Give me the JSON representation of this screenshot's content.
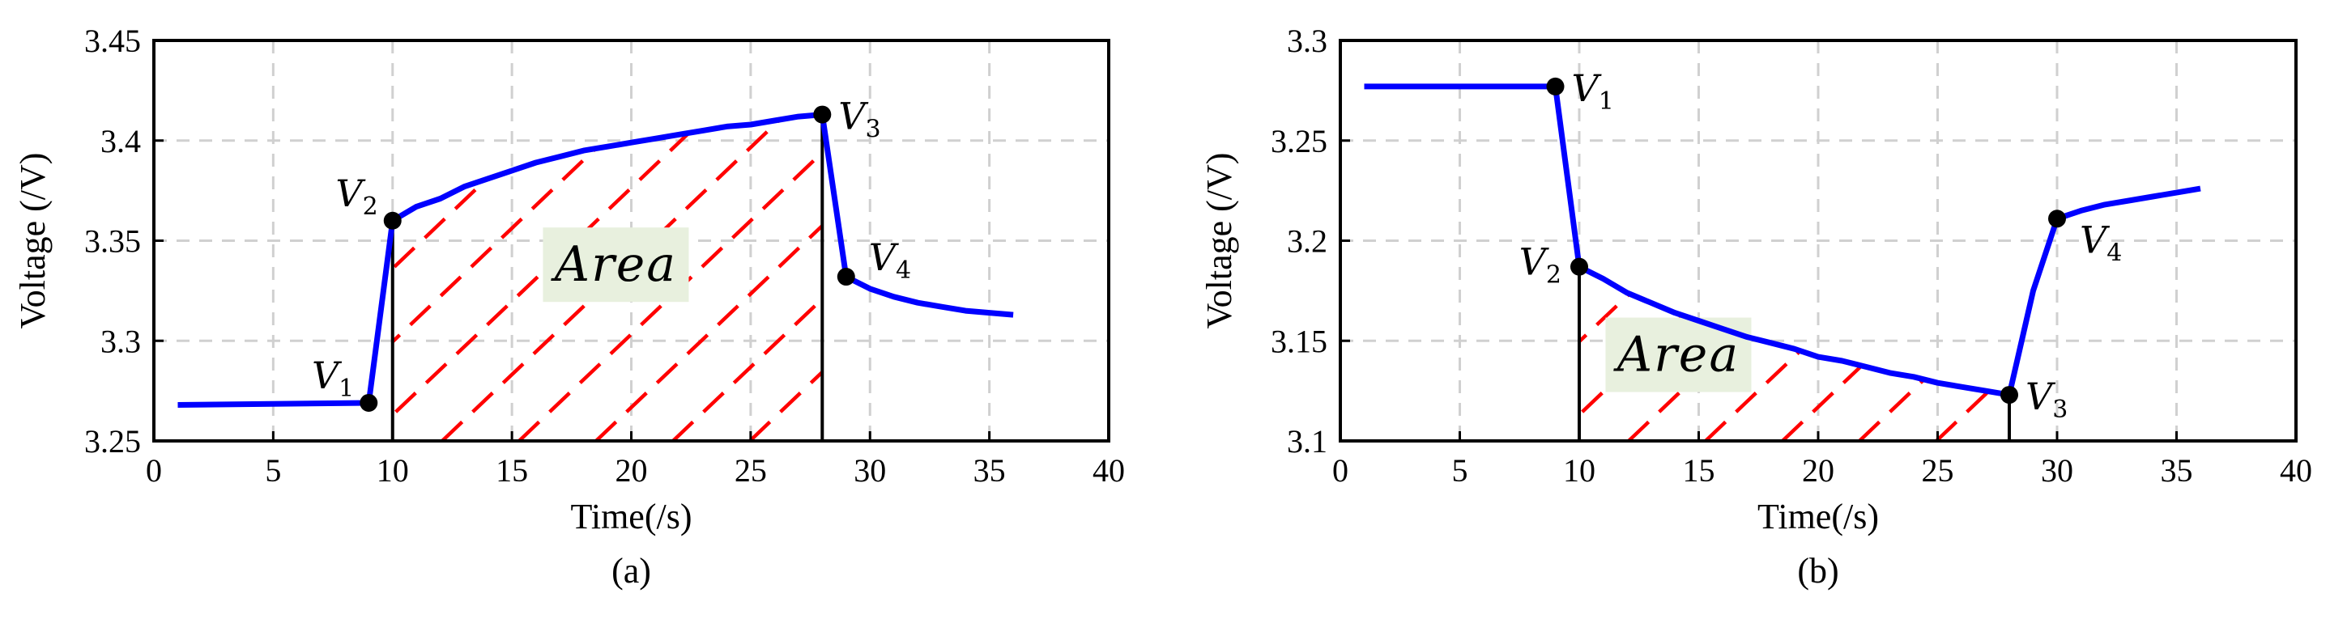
{
  "colors": {
    "series": "#0000ff",
    "hatch": "#ff0000",
    "area_box": "#e8f0de",
    "grid": "#d0d0d0",
    "marker": "#000000"
  },
  "chart_data": [
    {
      "type": "line",
      "panel_label": "(a)",
      "xlabel": "Time(/s)",
      "ylabel": "Voltage (/V)",
      "xlim": [
        0,
        40
      ],
      "ylim": [
        3.25,
        3.45
      ],
      "xticks": [
        0,
        5,
        10,
        15,
        20,
        25,
        30,
        35,
        40
      ],
      "yticks": [
        3.25,
        3.3,
        3.35,
        3.4,
        3.45
      ],
      "ytick_labels": [
        "3.25",
        "3.3",
        "3.35",
        "3.4",
        "3.45"
      ],
      "grid": true,
      "series": [
        {
          "x": [
            1,
            9,
            10,
            11,
            12,
            13,
            14,
            15,
            16,
            17,
            18,
            19,
            20,
            21,
            22,
            23,
            24,
            25,
            26,
            27,
            28,
            29,
            30,
            31,
            32,
            33,
            34,
            35,
            36
          ],
          "y": [
            3.268,
            3.269,
            3.36,
            3.367,
            3.371,
            3.377,
            3.381,
            3.385,
            3.389,
            3.392,
            3.395,
            3.397,
            3.399,
            3.401,
            3.403,
            3.405,
            3.407,
            3.408,
            3.41,
            3.412,
            3.413,
            3.332,
            3.326,
            3.322,
            3.319,
            3.317,
            3.315,
            3.314,
            3.313
          ]
        }
      ],
      "markers": [
        {
          "label": "V",
          "sub": "1",
          "x": 9,
          "y": 3.269,
          "label_pos": "upper-left"
        },
        {
          "label": "V",
          "sub": "2",
          "x": 10,
          "y": 3.36,
          "label_pos": "upper-left"
        },
        {
          "label": "V",
          "sub": "3",
          "x": 28,
          "y": 3.413,
          "label_pos": "right"
        },
        {
          "label": "V",
          "sub": "4",
          "x": 29,
          "y": 3.332,
          "label_pos": "upper-right"
        }
      ],
      "verticals": [
        10,
        28
      ],
      "area_label": "Area",
      "hatch_range": [
        10,
        28
      ]
    },
    {
      "type": "line",
      "panel_label": "(b)",
      "xlabel": "Time(/s)",
      "ylabel": "Voltage (/V)",
      "xlim": [
        0,
        40
      ],
      "ylim": [
        3.1,
        3.3
      ],
      "xticks": [
        0,
        5,
        10,
        15,
        20,
        25,
        30,
        35,
        40
      ],
      "yticks": [
        3.1,
        3.15,
        3.2,
        3.25,
        3.3
      ],
      "ytick_labels": [
        "3.1",
        "3.15",
        "3.2",
        "3.25",
        "3.3"
      ],
      "grid": true,
      "series": [
        {
          "x": [
            1,
            9,
            10,
            11,
            12,
            13,
            14,
            15,
            16,
            17,
            18,
            19,
            20,
            21,
            22,
            23,
            24,
            25,
            26,
            27,
            28,
            29,
            30,
            31,
            32,
            33,
            34,
            35,
            36
          ],
          "y": [
            3.277,
            3.277,
            3.187,
            3.181,
            3.174,
            3.169,
            3.164,
            3.16,
            3.156,
            3.152,
            3.149,
            3.146,
            3.142,
            3.14,
            3.137,
            3.134,
            3.132,
            3.129,
            3.127,
            3.125,
            3.123,
            3.175,
            3.211,
            3.215,
            3.218,
            3.22,
            3.222,
            3.224,
            3.226
          ]
        }
      ],
      "markers": [
        {
          "label": "V",
          "sub": "1",
          "x": 9,
          "y": 3.277,
          "label_pos": "right"
        },
        {
          "label": "V",
          "sub": "2",
          "x": 10,
          "y": 3.187,
          "label_pos": "left"
        },
        {
          "label": "V",
          "sub": "3",
          "x": 28,
          "y": 3.123,
          "label_pos": "right"
        },
        {
          "label": "V",
          "sub": "4",
          "x": 30,
          "y": 3.211,
          "label_pos": "lower-right"
        }
      ],
      "verticals": [
        10,
        28
      ],
      "area_label": "Area",
      "hatch_range": [
        10,
        28
      ]
    }
  ]
}
